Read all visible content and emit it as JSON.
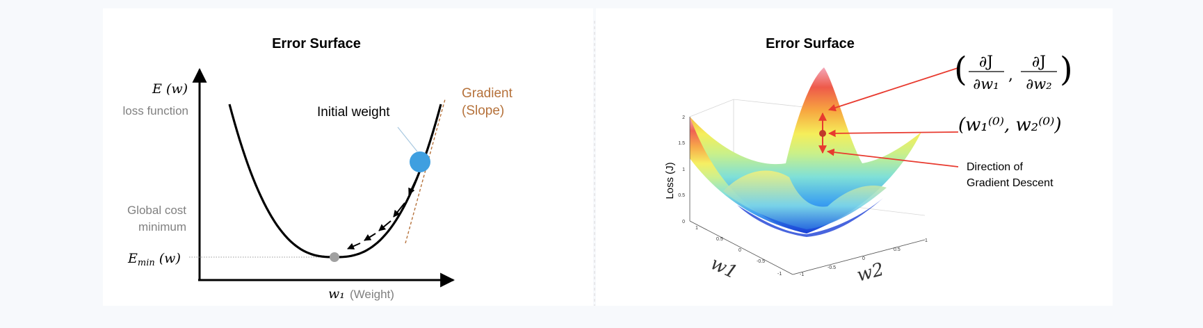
{
  "left_panel": {
    "title": "Error Surface",
    "y_axis_label": "E (w)",
    "y_axis_sublabel": "loss function",
    "x_axis_label": "w₁",
    "x_axis_sublabel": "(Weight)",
    "initial_weight_label": "Initial weight",
    "gradient_label_line1": "Gradient",
    "gradient_label_line2": "(Slope)",
    "global_min_line1": "Global cost",
    "global_min_line2": "minimum",
    "e_min_label": "E",
    "e_min_sub": "min",
    "e_min_arg": " (w)"
  },
  "right_panel": {
    "title": "Error Surface",
    "z_axis_label": "Loss (J)",
    "z_ticks": [
      "0",
      "0.5",
      "1",
      "1.5",
      "2"
    ],
    "w1_ticks": [
      "1",
      "0.5",
      "0",
      "-0.5",
      "-1"
    ],
    "w2_ticks": [
      "-1",
      "-0.5",
      "0",
      "0.5",
      "1"
    ],
    "w1_label": "w1",
    "w2_label": "w2",
    "partial_num": "∂J",
    "partial_den1": "∂w₁",
    "partial_den2": "∂w₂",
    "init_point_label": "(w₁⁽⁰⁾, w₂⁽⁰⁾)",
    "direction_line1": "Direction of",
    "direction_line2": "Gradient Descent"
  },
  "colors": {
    "curve": "#000000",
    "ball": "#3f9fe0",
    "min_dot": "#a0a0a0",
    "gradient": "#b5713a",
    "red_arrow": "#e83a2f",
    "gray_text": "#808080"
  }
}
